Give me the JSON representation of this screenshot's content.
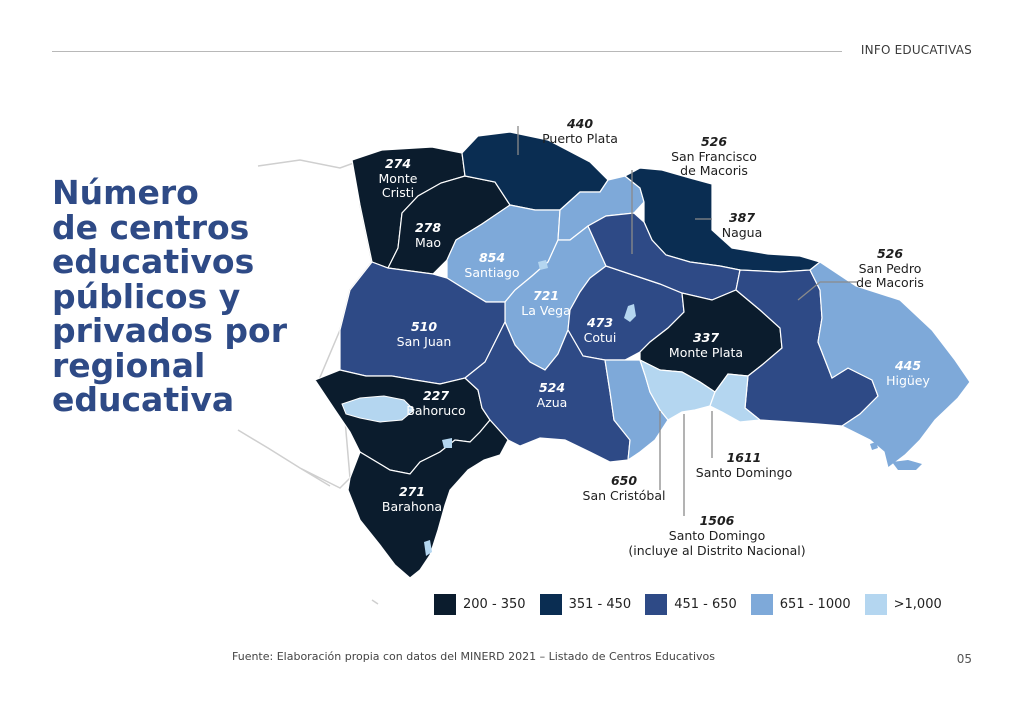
{
  "header": {
    "section": "INFO EDUCATIVAS"
  },
  "title_lines": [
    "Número",
    "de centros",
    "educativos",
    "públicos y",
    "privados por",
    "regional",
    "educativa"
  ],
  "colors": {
    "c1": "#0b1c2d",
    "c2": "#0a2d52",
    "c3": "#2e4a86",
    "c4": "#7ea9d9",
    "c5": "#b4d6f0",
    "outline": "#cfcfcf",
    "water": "#b4d6f0"
  },
  "legend": [
    {
      "label": "200 - 350",
      "color": "#0b1c2d"
    },
    {
      "label": "351 - 450",
      "color": "#0a2d52"
    },
    {
      "label": "451 - 650",
      "color": "#2e4a86"
    },
    {
      "label": "651 - 1000",
      "color": "#7ea9d9"
    },
    {
      "label": ">1,000",
      "color": "#b4d6f0"
    }
  ],
  "regions": [
    {
      "value": "274",
      "name_line1": "Monte",
      "name_line2": "Cristi"
    },
    {
      "value": "278",
      "name_line1": "Mao"
    },
    {
      "value": "440",
      "name_line1": "Puerto Plata"
    },
    {
      "value": "854",
      "name_line1": "Santiago"
    },
    {
      "value": "526",
      "name_line1": "San Francisco",
      "name_line2": "de Macoris"
    },
    {
      "value": "387",
      "name_line1": "Nagua"
    },
    {
      "value": "721",
      "name_line1": "La Vega"
    },
    {
      "value": "473",
      "name_line1": "Cotui"
    },
    {
      "value": "510",
      "name_line1": "San Juan"
    },
    {
      "value": "337",
      "name_line1": "Monte Plata"
    },
    {
      "value": "526",
      "name_line1": "San Pedro",
      "name_line2": "de Macoris"
    },
    {
      "value": "445",
      "name_line1": "Higüey"
    },
    {
      "value": "227",
      "name_line1": "Bahoruco"
    },
    {
      "value": "524",
      "name_line1": "Azua"
    },
    {
      "value": "271",
      "name_line1": "Barahona"
    },
    {
      "value": "650",
      "name_line1": "San Cristóbal"
    },
    {
      "value": "1611",
      "name_line1": "Santo Domingo"
    },
    {
      "value": "1506",
      "name_line1": "Santo Domingo",
      "name_line2": "(incluye al Distrito Nacional)"
    }
  ],
  "footer": {
    "source": "Fuente: Elaboración propia con datos del MINERD 2021 – Listado de Centros Educativos",
    "page": "05"
  }
}
